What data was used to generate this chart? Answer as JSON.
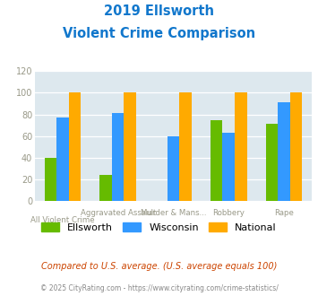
{
  "title_line1": "2019 Ellsworth",
  "title_line2": "Violent Crime Comparison",
  "categories": [
    "All Violent Crime",
    "Aggravated Assault",
    "Murder & Mans...",
    "Robbery",
    "Rape"
  ],
  "ellsworth": [
    40,
    24,
    0,
    75,
    71
  ],
  "wisconsin": [
    77,
    81,
    60,
    63,
    91
  ],
  "national": [
    100,
    100,
    100,
    100,
    100
  ],
  "color_ellsworth": "#66bb00",
  "color_wisconsin": "#3399ff",
  "color_national": "#ffaa00",
  "ylim": [
    0,
    120
  ],
  "yticks": [
    0,
    20,
    40,
    60,
    80,
    100,
    120
  ],
  "legend_labels": [
    "Ellsworth",
    "Wisconsin",
    "National"
  ],
  "footnote1": "Compared to U.S. average. (U.S. average equals 100)",
  "footnote2": "© 2025 CityRating.com - https://www.cityrating.com/crime-statistics/",
  "bg_color": "#dde8ee",
  "fig_bg": "#ffffff",
  "title_color": "#1177cc",
  "footnote1_color": "#cc4400",
  "footnote2_color": "#888888",
  "xtick_color": "#999988",
  "bar_width": 0.22
}
